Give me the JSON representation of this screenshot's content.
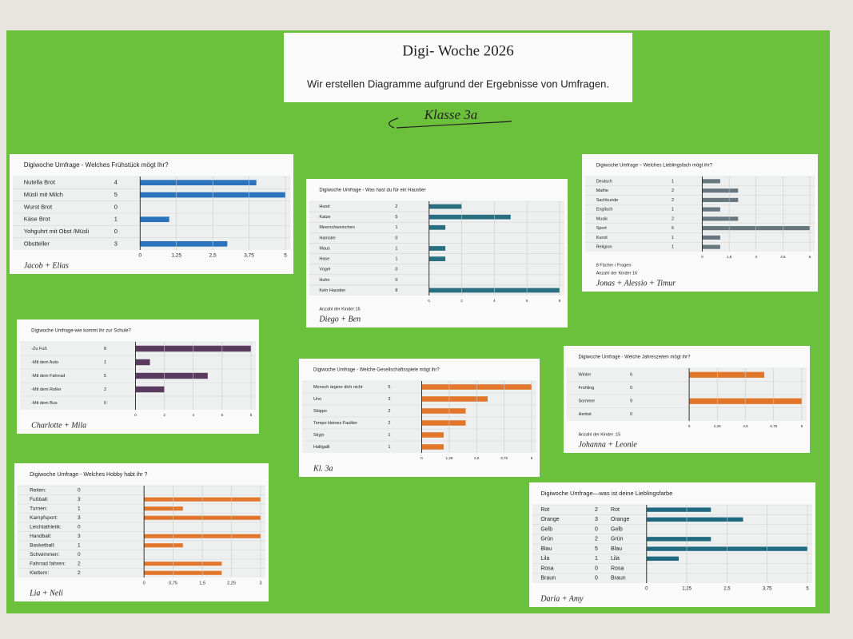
{
  "header": {
    "title": "Digi- Woche 2026",
    "subtitle": "Wir erstellen Diagramme aufgrund der Ergebnisse von Umfragen.",
    "class": "Klasse 3a"
  },
  "chart_data": [
    {
      "type": "bar",
      "title": "Digiwoche Umfrage - Welches Frühstück mögt Ihr?",
      "categories": [
        "Nutella Brot",
        "Müsli mit Milch",
        "Wurst Brot",
        "Käse Brot",
        "Yohguhrt mit Obst /Müsli",
        "Obstteller"
      ],
      "values": [
        4,
        5,
        0,
        1,
        0,
        3
      ],
      "color": "#2b74bd",
      "xlim": [
        0,
        5
      ],
      "xticks": [
        0,
        {
          "value": 1.25,
          "label": "1,25"
        },
        {
          "value": 2.5,
          "label": "2,5"
        },
        {
          "value": 3.75,
          "label": "3,75"
        },
        5
      ],
      "signature": "Jacob + Elias"
    },
    {
      "type": "bar",
      "title": "Digiwoche Umfrage - Was hast du für ein Haustier",
      "categories": [
        "Hund",
        "Katze",
        "Meerschweinchen",
        "Hamster",
        "Maus",
        "Hase",
        "Vogel",
        "Huhn",
        "Kein Haustier"
      ],
      "values": [
        2,
        5,
        1,
        0,
        1,
        1,
        0,
        0,
        8
      ],
      "color": "#2a6e82",
      "xlim": [
        0,
        8
      ],
      "xticks": [
        0,
        2,
        4,
        6,
        8
      ],
      "notes": [
        "Anzahl der Kinder:15"
      ],
      "signature": "Diego + Ben"
    },
    {
      "type": "bar",
      "title": "Digiwoche Umfrage – Welches Lieblingsfach mögt ihr?",
      "categories": [
        "Deutsch",
        "Mathe",
        "Sachkunde",
        "Englisch",
        "Musik",
        "Sport",
        "Kunst",
        "Religion"
      ],
      "values": [
        1,
        2,
        2,
        1,
        2,
        6,
        1,
        1
      ],
      "color": "#67767f",
      "xlim": [
        0,
        6
      ],
      "xticks": [
        0,
        {
          "value": 1.5,
          "label": "1,5"
        },
        3,
        {
          "value": 4.5,
          "label": "4,5"
        },
        6
      ],
      "notes": [
        "8 Fächer / Fragen",
        "Anzahl der Kinder 16"
      ],
      "signature": "Jonas + Alessio + Timur"
    },
    {
      "type": "bar",
      "title": "Digiwoche Umfrage-wie kommt ihr zur Schule?",
      "categories": [
        "-Zu Fuß",
        "-Mit dem Auto",
        "-Mit dem Fahrrad",
        "-Mit dem Roller",
        "-Mit dem Bus"
      ],
      "values": [
        8,
        1,
        5,
        2,
        0
      ],
      "color": "#5b3a5f",
      "xlim": [
        0,
        8
      ],
      "xticks": [
        0,
        2,
        4,
        6,
        8
      ],
      "signature": "Charlotte + Mila"
    },
    {
      "type": "bar",
      "title": "Digiwoche Umfrage - Welche Gesellschaftsspiele mögt ihr?",
      "categories": [
        "Mensch ärgere dich nicht",
        "Uno",
        "Skippo",
        "Tempo kleines Faultier",
        "Skyjo",
        "Halligalli"
      ],
      "values": [
        5,
        3,
        2,
        2,
        1,
        1
      ],
      "color": "#e2772b",
      "xlim": [
        0,
        5
      ],
      "xticks": [
        0,
        {
          "value": 1.25,
          "label": "1,25"
        },
        {
          "value": 2.5,
          "label": "2,5"
        },
        {
          "value": 3.75,
          "label": "3,75"
        },
        5
      ],
      "signature": "Kl. 3a"
    },
    {
      "type": "bar",
      "title": "Digiwoche Umfrage - Welche Jahreszeiten mögt ihr?",
      "categories": [
        "Winter",
        "Frühling",
        "Sommer",
        "Herbst"
      ],
      "values": [
        6,
        0,
        9,
        0
      ],
      "color": "#e2772b",
      "xlim": [
        0,
        9
      ],
      "xticks": [
        0,
        {
          "value": 2.25,
          "label": "2,25"
        },
        {
          "value": 4.5,
          "label": "4,5"
        },
        {
          "value": 6.75,
          "label": "6,75"
        },
        9
      ],
      "notes": [
        "Anzahl der Kinder :15"
      ],
      "signature": "Johanna + Leonie"
    },
    {
      "type": "bar",
      "title": "Digiwoche Umfrage - Welches Hobby habt ihr ?",
      "categories": [
        "Reiten:",
        "Fußball:",
        "Turnen:",
        "Kampfsport:",
        "Leichtathletik:",
        "Handball:",
        "Basketball:",
        "Schwimmen:",
        "Fahrrad fahren:",
        "Klettern:"
      ],
      "values": [
        0,
        3,
        1,
        3,
        0,
        3,
        1,
        0,
        2,
        2
      ],
      "color": "#e2772b",
      "xlim": [
        0,
        3
      ],
      "xticks": [
        0,
        {
          "value": 0.75,
          "label": "0,75"
        },
        {
          "value": 1.5,
          "label": "1,5"
        },
        {
          "value": 2.25,
          "label": "2,25"
        },
        3
      ],
      "signature": "Lia + Neli"
    },
    {
      "type": "bar",
      "title": "Digiwoche Umfrage—was ist deine Lieblingsfarbe",
      "categories": [
        "Rot",
        "Orange",
        "Gelb",
        "Grün",
        "Blau",
        "Lila",
        "Rosa",
        "Braun"
      ],
      "values": [
        2,
        3,
        0,
        2,
        5,
        1,
        0,
        0
      ],
      "color": "#1f6a80",
      "xlim": [
        0,
        5
      ],
      "xticks": [
        0,
        {
          "value": 1.25,
          "label": "1,25"
        },
        {
          "value": 2.5,
          "label": "2,5"
        },
        {
          "value": 3.75,
          "label": "3,75"
        },
        5
      ],
      "signature": "Daria + Amy"
    }
  ]
}
